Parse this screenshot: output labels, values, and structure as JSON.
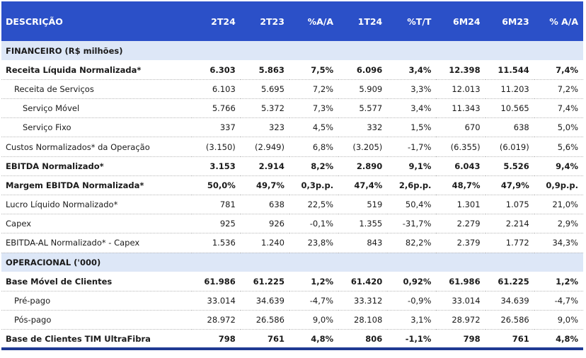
{
  "headers": [
    "DESCRIÇÃO",
    "2T24",
    "2T23",
    "%A/A",
    "1T24",
    "%T/T",
    "6M24",
    "6M23",
    "% A/A"
  ],
  "rows": [
    {
      "type": "section",
      "label": "FINANCEIRO (R$ milhões)"
    },
    {
      "type": "bold",
      "indent": 0,
      "label": "Receita Líquida Normalizada*",
      "values": [
        "6.303",
        "5.863",
        "7,5%",
        "6.096",
        "3,4%",
        "12.398",
        "11.544",
        "7,4%"
      ]
    },
    {
      "type": "normal",
      "indent": 1,
      "label": "Receita de Serviços",
      "values": [
        "6.103",
        "5.695",
        "7,2%",
        "5.909",
        "3,3%",
        "12.013",
        "11.203",
        "7,2%"
      ]
    },
    {
      "type": "normal",
      "indent": 2,
      "label": "Serviço Móvel",
      "values": [
        "5.766",
        "5.372",
        "7,3%",
        "5.577",
        "3,4%",
        "11.343",
        "10.565",
        "7,4%"
      ]
    },
    {
      "type": "normal",
      "indent": 2,
      "label": "Serviço Fixo",
      "values": [
        "337",
        "323",
        "4,5%",
        "332",
        "1,5%",
        "670",
        "638",
        "5,0%"
      ]
    },
    {
      "type": "normal",
      "indent": 0,
      "label": "Custos Normalizados* da Operação",
      "values": [
        "(3.150)",
        "(2.949)",
        "6,8%",
        "(3.205)",
        "-1,7%",
        "(6.355)",
        "(6.019)",
        "5,6%"
      ]
    },
    {
      "type": "bold",
      "indent": 0,
      "label": "EBITDA Normalizado*",
      "values": [
        "3.153",
        "2.914",
        "8,2%",
        "2.890",
        "9,1%",
        "6.043",
        "5.526",
        "9,4%"
      ]
    },
    {
      "type": "bold",
      "indent": 0,
      "label": "Margem EBITDA Normalizada*",
      "values": [
        "50,0%",
        "49,7%",
        "0,3p.p.",
        "47,4%",
        "2,6p.p.",
        "48,7%",
        "47,9%",
        "0,9p.p."
      ]
    },
    {
      "type": "normal",
      "indent": 0,
      "label": "Lucro Líquido Normalizado*",
      "values": [
        "781",
        "638",
        "22,5%",
        "519",
        "50,4%",
        "1.301",
        "1.075",
        "21,0%"
      ]
    },
    {
      "type": "normal",
      "indent": 0,
      "label": "Capex",
      "values": [
        "925",
        "926",
        "-0,1%",
        "1.355",
        "-31,7%",
        "2.279",
        "2.214",
        "2,9%"
      ]
    },
    {
      "type": "normal",
      "indent": 0,
      "label": "EBITDA-AL Normalizado* - Capex",
      "values": [
        "1.536",
        "1.240",
        "23,8%",
        "843",
        "82,2%",
        "2.379",
        "1.772",
        "34,3%"
      ]
    },
    {
      "type": "section",
      "label": "OPERACIONAL ('000)"
    },
    {
      "type": "bold",
      "indent": 0,
      "label": "Base Móvel de Clientes",
      "values": [
        "61.986",
        "61.225",
        "1,2%",
        "61.420",
        "0,92%",
        "61.986",
        "61.225",
        "1,2%"
      ]
    },
    {
      "type": "normal",
      "indent": 1,
      "label": "Pré-pago",
      "values": [
        "33.014",
        "34.639",
        "-4,7%",
        "33.312",
        "-0,9%",
        "33.014",
        "34.639",
        "-4,7%"
      ]
    },
    {
      "type": "normal",
      "indent": 1,
      "label": "Pós-pago",
      "values": [
        "28.972",
        "26.586",
        "9,0%",
        "28.108",
        "3,1%",
        "28.972",
        "26.586",
        "9,0%"
      ]
    },
    {
      "type": "bold",
      "indent": 0,
      "label": "Base de Clientes TIM UltraFibra",
      "values": [
        "798",
        "761",
        "4,8%",
        "806",
        "-1,1%",
        "798",
        "761",
        "4,8%"
      ]
    }
  ]
}
